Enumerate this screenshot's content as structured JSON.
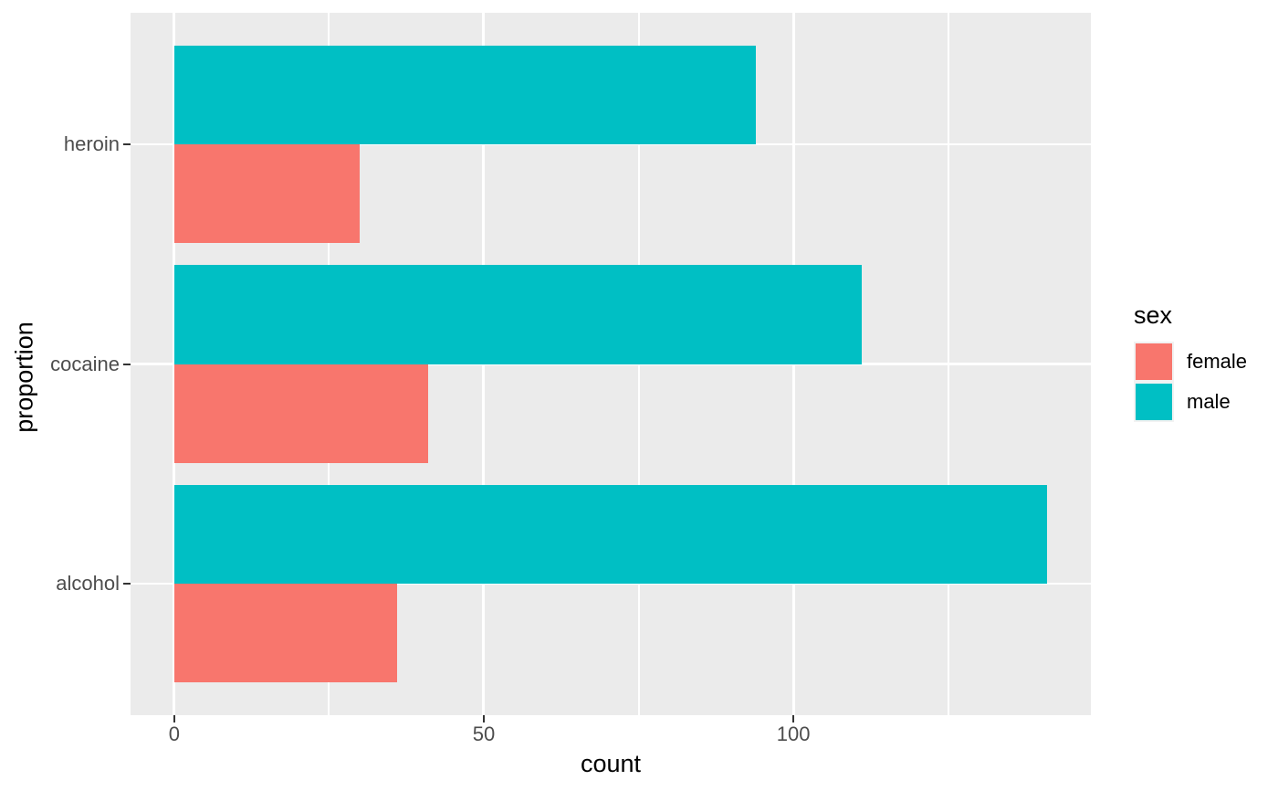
{
  "chart_data": {
    "type": "bar",
    "orientation": "horizontal",
    "grouping": "dodge",
    "title": "",
    "xlabel": "count",
    "ylabel": "proportion",
    "categories": [
      "heroin",
      "cocaine",
      "alcohol"
    ],
    "series": [
      {
        "name": "female",
        "color": "#F8766D",
        "values": [
          30,
          41,
          36
        ]
      },
      {
        "name": "male",
        "color": "#00BFC4",
        "values": [
          94,
          111,
          141
        ]
      }
    ],
    "x_ticks": [
      0,
      50,
      100
    ],
    "x_tick_labels": [
      "0",
      "50",
      "100"
    ],
    "x_minor_ticks": [
      25,
      75,
      125
    ],
    "xlim": [
      -7.05,
      148.05
    ],
    "legend": {
      "title": "sex",
      "position": "right",
      "entries": [
        "female",
        "male"
      ]
    },
    "style": {
      "panel_bg": "#EBEBEB",
      "grid_color": "#FFFFFF",
      "tick_mark_color": "#333333",
      "tick_label_color": "#4D4D4D",
      "axis_title_color": "#000000",
      "legend_key_border": "#F2F2F2",
      "female_color": "#F8766D",
      "male_color": "#00BFC4"
    }
  }
}
